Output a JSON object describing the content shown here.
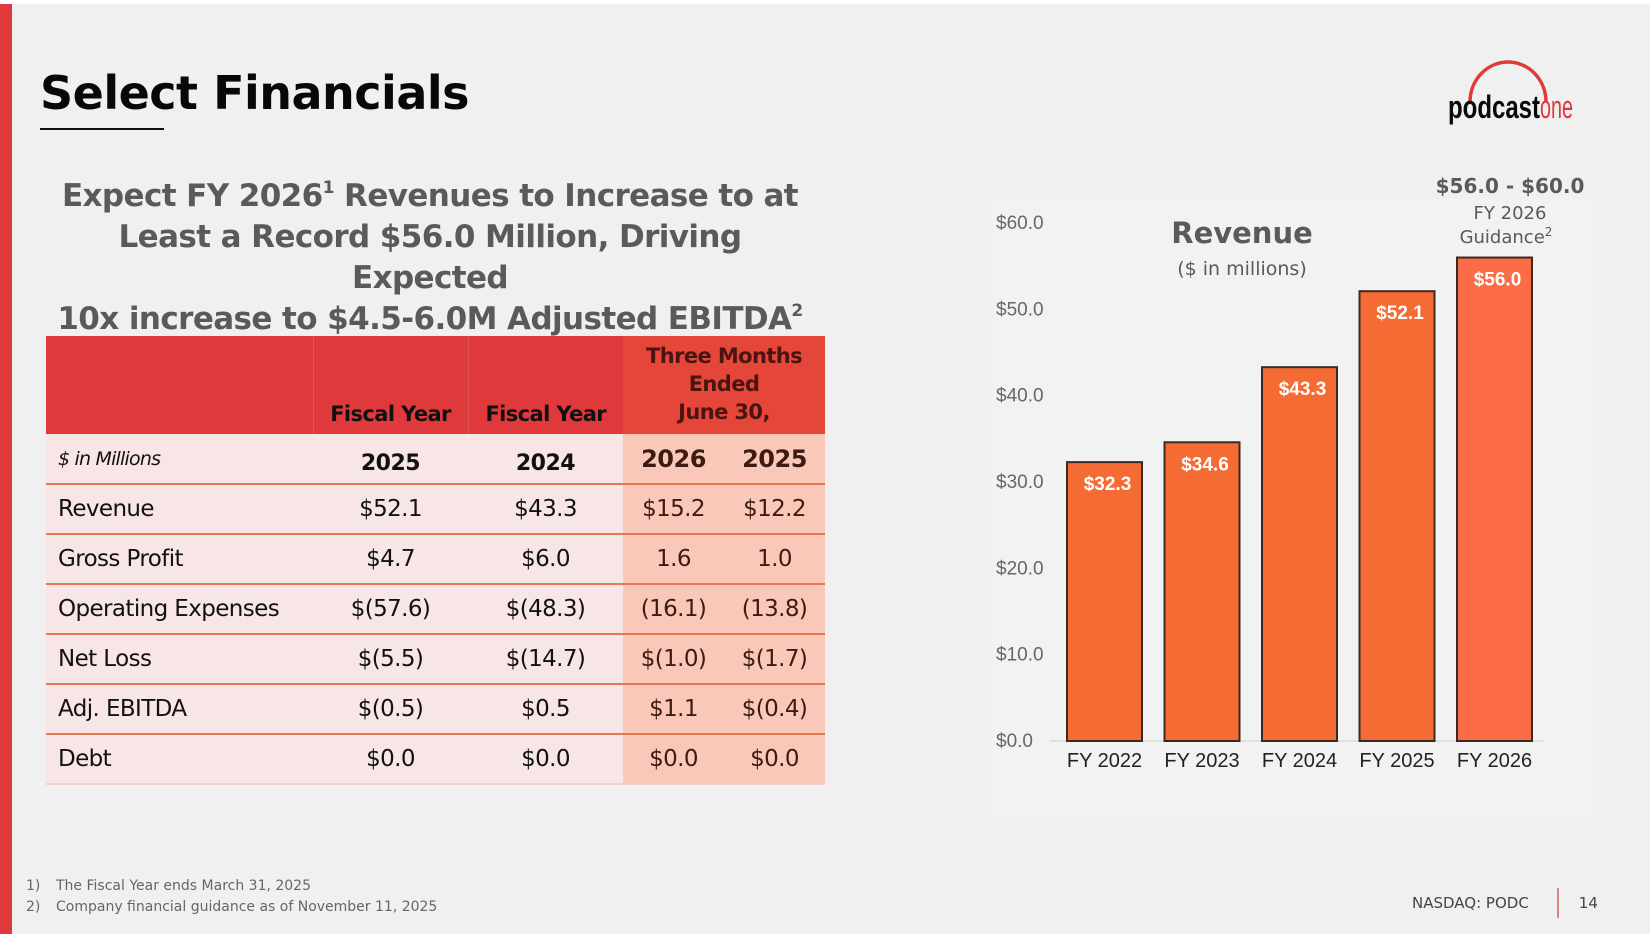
{
  "slide": {
    "title": "Select Financials",
    "logo": {
      "text_black": "podcast",
      "text_red": "one",
      "alt": "PodcastOne"
    },
    "headline": {
      "line1_a": "Expect FY 2026",
      "line1_sup": "1",
      "line1_b": " Revenues to Increase to at",
      "line2": "Least a Record $56.0 Million, Driving Expected",
      "line3": "10x increase to $4.5-6.0M Adjusted EBITDA",
      "line3_sup": "2"
    },
    "colors": {
      "accent": "#e0393b",
      "header_red": "#e0393b",
      "quarter_header": "#e4473a",
      "row_fill": "#f8e6e6",
      "quarter_fill": "#f9c8b8",
      "row_divider": "#e8764f",
      "bar_fill": "#f56b34",
      "bar_fill_guidance": "#fc6c46"
    }
  },
  "table": {
    "header": {
      "fy_label_1": "Fiscal Year",
      "fy_label_2": "Fiscal Year",
      "quarter_label_l1": "Three Months",
      "quarter_label_l2": "Ended",
      "quarter_label_l3": "June 30,"
    },
    "subheader": {
      "units": "$ in Millions",
      "years": [
        "2025",
        "2024",
        "2026",
        "2025"
      ]
    },
    "rows": [
      {
        "label": "Revenue",
        "values": [
          "$52.1",
          "$43.3",
          "$15.2",
          "$12.2"
        ]
      },
      {
        "label": "Gross Profit",
        "values": [
          "$4.7",
          "$6.0",
          "1.6",
          "1.0"
        ]
      },
      {
        "label": "Operating Expenses",
        "values": [
          "$(57.6)",
          "$(48.3)",
          "(16.1)",
          "(13.8)"
        ]
      },
      {
        "label": "Net Loss",
        "values": [
          "$(5.5)",
          "$(14.7)",
          "$(1.0)",
          "$(1.7)"
        ]
      },
      {
        "label": "Adj. EBITDA",
        "values": [
          "$(0.5)",
          "$0.5",
          "$1.1",
          "$(0.4)"
        ]
      },
      {
        "label": "Debt",
        "values": [
          "$0.0",
          "$0.0",
          "$0.0",
          "$0.0"
        ]
      }
    ]
  },
  "chart_data": {
    "type": "bar",
    "title": "Revenue",
    "subtitle": "($ in millions)",
    "categories": [
      "FY 2022",
      "FY 2023",
      "FY 2024",
      "FY 2025",
      "FY 2026"
    ],
    "values": [
      32.3,
      34.6,
      43.3,
      52.1,
      56.0
    ],
    "data_labels": [
      "$32.3",
      "$34.6",
      "$43.3",
      "$52.1",
      "$56.0"
    ],
    "xlabel": "",
    "ylabel": "",
    "ylim": [
      0,
      60
    ],
    "yticks": [
      0,
      10,
      20,
      30,
      40,
      50,
      60
    ],
    "ytick_labels": [
      "$0.0",
      "$10.0",
      "$20.0",
      "$30.0",
      "$40.0",
      "$50.0",
      "$60.0"
    ],
    "grid": false,
    "legend": "none",
    "annotation": {
      "range": "$56.0 - $60.0",
      "line1": "FY 2026",
      "line2": "Guidance",
      "line2_sup": "2",
      "target_category": "FY 2026"
    }
  },
  "footnotes": [
    {
      "num": "1)",
      "text": "The Fiscal Year ends March 31, 2025"
    },
    {
      "num": "2)",
      "text": "Company financial guidance as of November 11, 2025"
    }
  ],
  "footer": {
    "ticker": "NASDAQ: PODC",
    "page_number": "14"
  }
}
